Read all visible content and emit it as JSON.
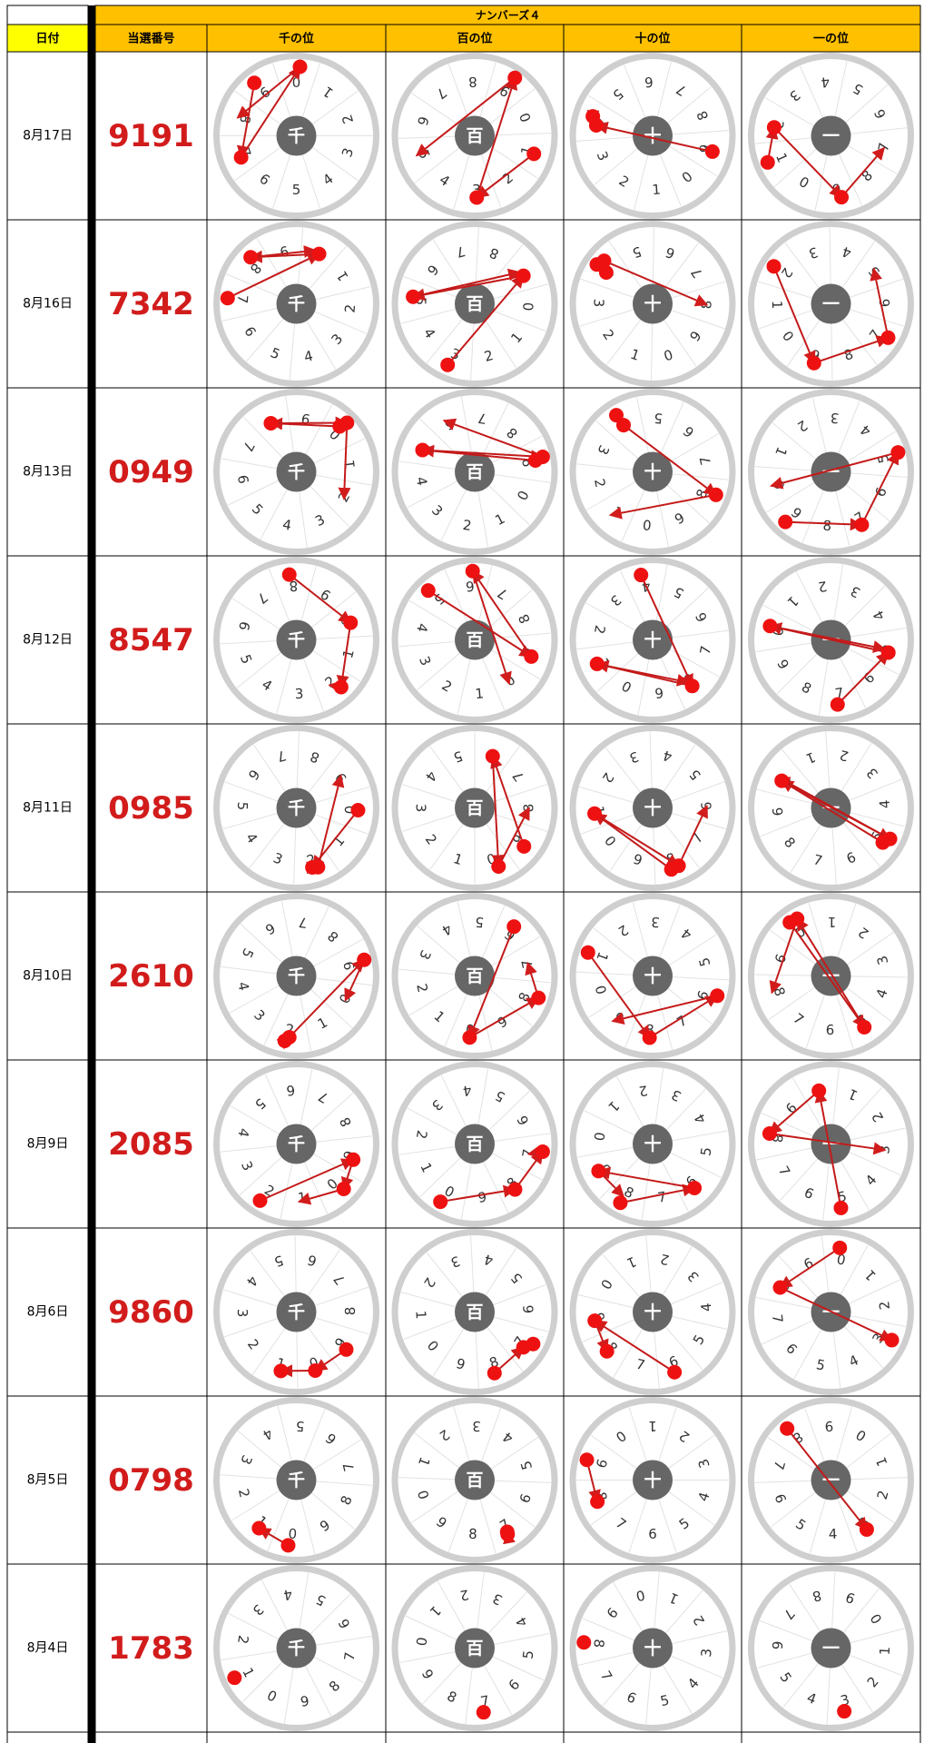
{
  "header": {
    "title": "ナンバーズ４",
    "columns": [
      "日付",
      "当選番号",
      "千の位",
      "百の位",
      "十の位",
      "一の位"
    ]
  },
  "wheel": {
    "digits": [
      "0",
      "1",
      "2",
      "3",
      "4",
      "5",
      "6",
      "7",
      "8",
      "9"
    ],
    "centers": [
      "千",
      "百",
      "十",
      "一"
    ]
  },
  "rows": [
    {
      "date": "8月17日",
      "number": "9191"
    },
    {
      "date": "8月16日",
      "number": "7342"
    },
    {
      "date": "8月13日",
      "number": "0949"
    },
    {
      "date": "8月12日",
      "number": "8547"
    },
    {
      "date": "8月11日",
      "number": "0985"
    },
    {
      "date": "8月10日",
      "number": "2610"
    },
    {
      "date": "8月9日",
      "number": "2085"
    },
    {
      "date": "8月6日",
      "number": "9860"
    },
    {
      "date": "8月5日",
      "number": "0798"
    },
    {
      "date": "8月4日",
      "number": "1783"
    }
  ]
}
